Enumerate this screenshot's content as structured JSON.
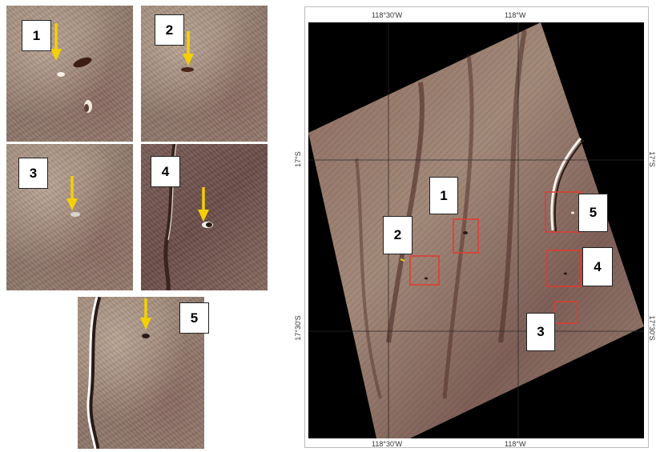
{
  "panels": [
    {
      "number": "1"
    },
    {
      "number": "2"
    },
    {
      "number": "3"
    },
    {
      "number": "4"
    },
    {
      "number": "5"
    }
  ],
  "map": {
    "top_labels": [
      "118°30'W",
      "118°W"
    ],
    "bottom_labels": [
      "118°30'W",
      "118°W"
    ],
    "left_labels": [
      "17°S",
      "17°30'S"
    ],
    "right_labels": [
      "17°S",
      "17°30'S"
    ],
    "site_labels": [
      "1",
      "2",
      "3",
      "4",
      "5"
    ]
  },
  "colors": {
    "arrow": "#f5d000",
    "box": "#e23a2e",
    "grid": "#2a2a2a"
  }
}
